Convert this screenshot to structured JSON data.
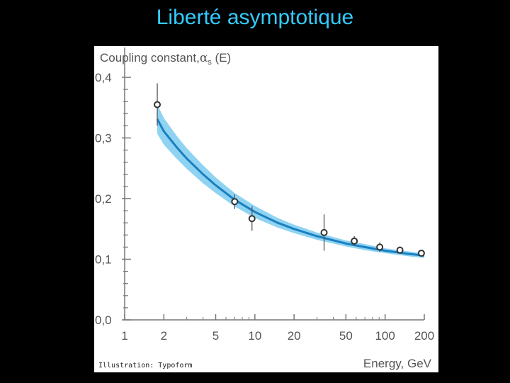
{
  "slide": {
    "title": "Liberté asymptotique"
  },
  "chart_data": {
    "type": "scatter",
    "ylabel": "Coupling constant,",
    "ylabel_symbol": "α",
    "ylabel_sub": "s",
    "ylabel_tail": " (E)",
    "xlabel": "Energy, GeV",
    "x_scale": "log",
    "xlim": [
      1,
      200
    ],
    "ylim": [
      0.0,
      0.4
    ],
    "x_ticks": [
      1,
      2,
      5,
      10,
      20,
      50,
      100,
      200
    ],
    "x_tick_labels": [
      "1",
      "2",
      "5",
      "10",
      "20",
      "50",
      "100",
      "200"
    ],
    "y_ticks": [
      0.0,
      0.1,
      0.2,
      0.3,
      0.4
    ],
    "y_tick_labels": [
      "0,0",
      "0,1",
      "0,2",
      "0,3",
      "0,4"
    ],
    "points": [
      {
        "x": 1.78,
        "y": 0.355,
        "err_low": 0.035,
        "err_high": 0.035
      },
      {
        "x": 7.0,
        "y": 0.195,
        "err_low": 0.012,
        "err_high": 0.012
      },
      {
        "x": 9.5,
        "y": 0.167,
        "err_low": 0.02,
        "err_high": 0.02
      },
      {
        "x": 34,
        "y": 0.144,
        "err_low": 0.03,
        "err_high": 0.03
      },
      {
        "x": 58,
        "y": 0.13,
        "err_low": 0.008,
        "err_high": 0.008
      },
      {
        "x": 91,
        "y": 0.12,
        "err_low": 0.008,
        "err_high": 0.008
      },
      {
        "x": 130,
        "y": 0.115,
        "err_low": 0.006,
        "err_high": 0.006
      },
      {
        "x": 190,
        "y": 0.11,
        "err_low": 0.003,
        "err_high": 0.003
      }
    ],
    "theory_curve": {
      "x": [
        1.78,
        2,
        2.5,
        3,
        4,
        5,
        7,
        10,
        15,
        20,
        30,
        50,
        70,
        100,
        150,
        200
      ],
      "y": [
        0.331,
        0.311,
        0.285,
        0.266,
        0.24,
        0.222,
        0.198,
        0.178,
        0.16,
        0.15,
        0.138,
        0.126,
        0.12,
        0.114,
        0.109,
        0.106
      ],
      "band_halfwidth": [
        0.024,
        0.022,
        0.019,
        0.017,
        0.015,
        0.013,
        0.011,
        0.01,
        0.008,
        0.007,
        0.006,
        0.005,
        0.005,
        0.004,
        0.004,
        0.004
      ]
    },
    "colors": {
      "curve": "#1a7fc0",
      "band": "#8fd3f2",
      "points": "#555555",
      "axis": "#777777"
    },
    "credit": "Illustration: Typoform"
  }
}
